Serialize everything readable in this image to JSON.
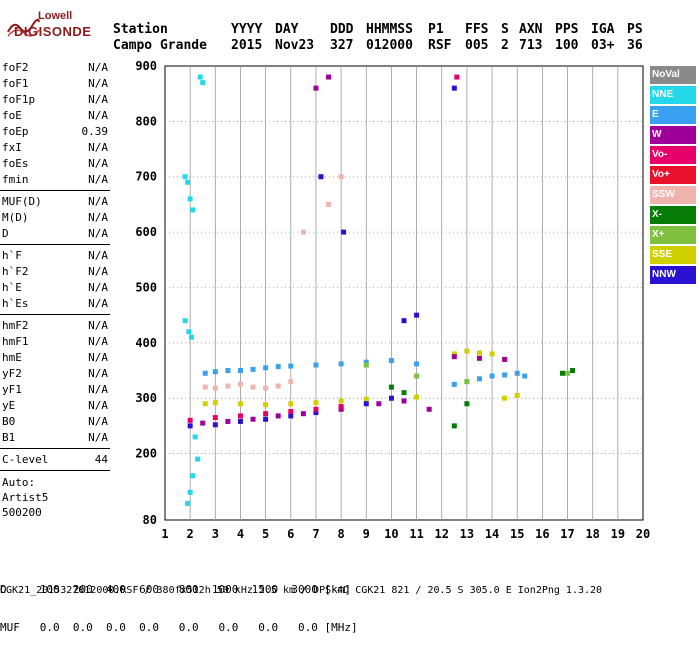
{
  "logo": {
    "line1": "Lowell",
    "line2": "DIGISONDE"
  },
  "header": {
    "labels": [
      "Station",
      "YYYY",
      "DAY",
      "DDD",
      "HHMMSS",
      "P1",
      "FFS",
      "S",
      "AXN",
      "PPS",
      "IGA",
      "PS"
    ],
    "values": [
      "Campo Grande",
      "2015",
      "Nov23",
      "327",
      "012000",
      "RSF",
      "005",
      "2",
      "713",
      "100",
      "03+",
      "36"
    ]
  },
  "params": {
    "group1": [
      {
        "name": "foF2",
        "value": "N/A"
      },
      {
        "name": "foF1",
        "value": "N/A"
      },
      {
        "name": "foF1p",
        "value": "N/A"
      },
      {
        "name": "foE",
        "value": "N/A"
      },
      {
        "name": "foEp",
        "value": "0.39"
      },
      {
        "name": "fxI",
        "value": "N/A"
      },
      {
        "name": "foEs",
        "value": "N/A"
      },
      {
        "name": "fmin",
        "value": "N/A"
      }
    ],
    "group2": [
      {
        "name": "MUF(D)",
        "value": "N/A"
      },
      {
        "name": "M(D)",
        "value": "N/A"
      },
      {
        "name": "D",
        "value": "N/A"
      }
    ],
    "group3": [
      {
        "name": "h`F",
        "value": "N/A"
      },
      {
        "name": "h`F2",
        "value": "N/A"
      },
      {
        "name": "h`E",
        "value": "N/A"
      },
      {
        "name": "h`Es",
        "value": "N/A"
      }
    ],
    "group4": [
      {
        "name": "hmF2",
        "value": "N/A"
      },
      {
        "name": "hmF1",
        "value": "N/A"
      },
      {
        "name": "hmE",
        "value": "N/A"
      },
      {
        "name": "yF2",
        "value": "N/A"
      },
      {
        "name": "yF1",
        "value": "N/A"
      },
      {
        "name": "yE",
        "value": "N/A"
      },
      {
        "name": "B0",
        "value": "N/A"
      },
      {
        "name": "B1",
        "value": "N/A"
      }
    ],
    "clevel": {
      "name": "C-level",
      "value": "44"
    },
    "notes": [
      "Auto:",
      "Artist5",
      "500200"
    ]
  },
  "legend": [
    {
      "label": "NoVal",
      "color": "#8a8a8a"
    },
    {
      "label": "NNE",
      "color": "#22d8ea"
    },
    {
      "label": "E",
      "color": "#3aa0f0"
    },
    {
      "label": "W",
      "color": "#a0009a"
    },
    {
      "label": "Vo-",
      "color": "#e8006a"
    },
    {
      "label": "Vo+",
      "color": "#e8102a"
    },
    {
      "label": "SSW",
      "color": "#f0b4ae"
    },
    {
      "label": "X-",
      "color": "#067c06"
    },
    {
      "label": "X+",
      "color": "#80c040"
    },
    {
      "label": "SSE",
      "color": "#d0d000"
    },
    {
      "label": "NNW",
      "color": "#2a10d0"
    }
  ],
  "tables": {
    "d_row": "D     100  200  400  600   800  1000  1500  3000 [km]",
    "muf_row": "MUF   0.0  0.0  0.0  0.0   0.0   0.0   0.0   0.0 [MHz]"
  },
  "footer": "CGK21_2015327012000.RSF / 380fx512h 50 kHz 2.5 km / DPS-4D CGK21 821 / 20.5 S 305.0 E Ion2Png 1.3.20",
  "chart_data": {
    "type": "scatter",
    "title": "",
    "xlabel": "",
    "ylabel": "",
    "xlim": [
      1,
      20
    ],
    "ylim": [
      80,
      900
    ],
    "xticks": [
      1,
      2,
      3,
      4,
      5,
      6,
      7,
      8,
      9,
      10,
      11,
      12,
      13,
      14,
      15,
      16,
      17,
      18,
      19,
      20
    ],
    "yticks": [
      80,
      200,
      300,
      400,
      500,
      600,
      700,
      800,
      900
    ],
    "grid": true,
    "series": [
      {
        "color_key": "NNE",
        "x": [
          1.8,
          1.9,
          2.0,
          2.1,
          1.8,
          1.95,
          2.05,
          2.4,
          2.5,
          2.2,
          2.3,
          1.9,
          2.0,
          2.1
        ],
        "y": [
          700,
          690,
          660,
          640,
          440,
          420,
          410,
          880,
          870,
          230,
          190,
          110,
          130,
          160
        ]
      },
      {
        "color_key": "E",
        "x": [
          2.6,
          3.0,
          3.5,
          4.0,
          4.5,
          5.0,
          5.5,
          6.0,
          7.0,
          8.0,
          9.0,
          10.0,
          11.0,
          12.5,
          13.0,
          13.5,
          14.0,
          14.5,
          15.0,
          15.3
        ],
        "y": [
          345,
          348,
          350,
          350,
          352,
          355,
          357,
          358,
          360,
          362,
          365,
          368,
          362,
          325,
          330,
          335,
          340,
          342,
          345,
          340
        ]
      },
      {
        "color_key": "SSW",
        "x": [
          2.6,
          3.0,
          3.5,
          4.0,
          4.5,
          5.0,
          5.5,
          6.0,
          6.5,
          7.5,
          8.0
        ],
        "y": [
          320,
          318,
          322,
          325,
          320,
          318,
          322,
          330,
          600,
          650,
          700
        ]
      },
      {
        "color_key": "SSE",
        "x": [
          2.6,
          3.0,
          4.0,
          5.0,
          6.0,
          7.0,
          8.0,
          9.0,
          10.0,
          11.0,
          12.5,
          13.0,
          13.5,
          14.0,
          14.5,
          15.0
        ],
        "y": [
          290,
          292,
          290,
          288,
          290,
          292,
          295,
          298,
          300,
          302,
          380,
          385,
          382,
          380,
          300,
          305
        ]
      },
      {
        "color_key": "NNW",
        "x": [
          2.0,
          3.0,
          4.0,
          5.0,
          6.0,
          7.0,
          8.0,
          9.0,
          10.0,
          10.5,
          11.0,
          12.5,
          7.2,
          8.1
        ],
        "y": [
          250,
          252,
          258,
          262,
          268,
          274,
          282,
          290,
          300,
          440,
          450,
          860,
          700,
          600
        ]
      },
      {
        "color_key": "W",
        "x": [
          2.5,
          3.5,
          4.5,
          5.5,
          6.5,
          7.0,
          7.5,
          8.0,
          9.5,
          10.5,
          11.5,
          12.5,
          13.5,
          14.5
        ],
        "y": [
          255,
          258,
          262,
          268,
          272,
          860,
          880,
          280,
          290,
          295,
          280,
          375,
          372,
          370
        ]
      },
      {
        "color_key": "Vo-",
        "x": [
          2.0,
          3.0,
          4.0,
          5.0,
          6.0,
          7.0,
          8.0,
          12.6
        ],
        "y": [
          260,
          265,
          268,
          272,
          276,
          280,
          285,
          880
        ]
      },
      {
        "color_key": "X-",
        "x": [
          10.0,
          10.5,
          12.5,
          13.0,
          16.8,
          17.2
        ],
        "y": [
          320,
          310,
          250,
          290,
          345,
          350
        ]
      },
      {
        "color_key": "X+",
        "x": [
          9.0,
          11.0,
          13.0,
          17.0
        ],
        "y": [
          360,
          340,
          330,
          345
        ]
      }
    ]
  }
}
